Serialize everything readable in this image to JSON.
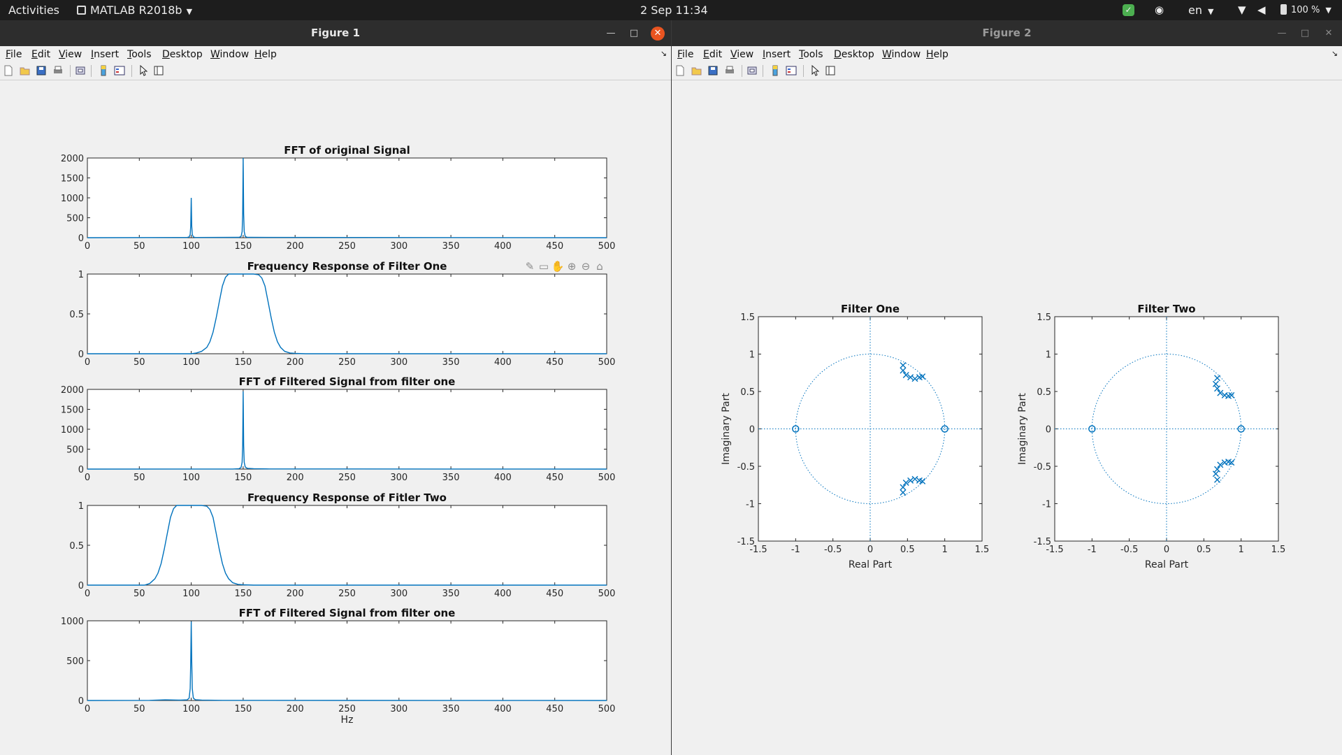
{
  "topbar": {
    "activities": "Activities",
    "app_name": "MATLAB R2018b",
    "datetime": "2 Sep  11:34",
    "language": "en",
    "battery": "100 %"
  },
  "figure1": {
    "title": "Figure 1",
    "menu": [
      "File",
      "Edit",
      "View",
      "Insert",
      "Tools",
      "Desktop",
      "Window",
      "Help"
    ]
  },
  "figure2": {
    "title": "Figure 2",
    "menu": [
      "File",
      "Edit",
      "View",
      "Insert",
      "Tools",
      "Desktop",
      "Window",
      "Help"
    ]
  },
  "colors": {
    "series": "#0072bd",
    "axes": "#262626",
    "figure_bg": "#f0f0f0",
    "close": "#e95420"
  },
  "chart_data": [
    {
      "type": "line",
      "title": "FFT of original Signal",
      "xlim": [
        0,
        500
      ],
      "ylim": [
        0,
        2000
      ],
      "xticks": [
        0,
        50,
        100,
        150,
        200,
        250,
        300,
        350,
        400,
        450,
        500
      ],
      "yticks": [
        0,
        500,
        1000,
        1500,
        2000
      ],
      "x": [
        0,
        96,
        98,
        99,
        99.5,
        100,
        100.5,
        101,
        102,
        104,
        146,
        148,
        149,
        149.5,
        150,
        150.5,
        151,
        152,
        154,
        500
      ],
      "series": [
        {
          "values": [
            0,
            5,
            20,
            80,
            300,
            1000,
            300,
            80,
            20,
            5,
            8,
            30,
            150,
            600,
            2000,
            600,
            150,
            30,
            8,
            0
          ]
        }
      ]
    },
    {
      "type": "line",
      "title": "Frequency Response of Filter One",
      "xlim": [
        0,
        500
      ],
      "ylim": [
        0,
        1
      ],
      "xticks": [
        0,
        50,
        100,
        150,
        200,
        250,
        300,
        350,
        400,
        450,
        500
      ],
      "yticks": [
        0,
        0.5,
        1
      ],
      "x": [
        0,
        100,
        105,
        110,
        115,
        118,
        121,
        124,
        127,
        130,
        133,
        136,
        140,
        150,
        160,
        165,
        168,
        171,
        174,
        177,
        180,
        183,
        186,
        190,
        195,
        200,
        210,
        500
      ],
      "series": [
        {
          "values": [
            0,
            0,
            0.01,
            0.03,
            0.08,
            0.15,
            0.27,
            0.45,
            0.65,
            0.85,
            0.96,
            1.0,
            1.0,
            1.0,
            1.0,
            0.99,
            0.95,
            0.85,
            0.65,
            0.45,
            0.27,
            0.15,
            0.08,
            0.03,
            0.01,
            0.004,
            0,
            0
          ]
        }
      ]
    },
    {
      "type": "line",
      "title": "FFT of Filtered Signal from filter one",
      "xlim": [
        0,
        500
      ],
      "ylim": [
        0,
        2000
      ],
      "xticks": [
        0,
        50,
        100,
        150,
        200,
        250,
        300,
        350,
        400,
        450,
        500
      ],
      "yticks": [
        0,
        500,
        1000,
        1500,
        2000
      ],
      "x": [
        0,
        140,
        146,
        148,
        149,
        149.5,
        150,
        150.5,
        151,
        152,
        154,
        160,
        175,
        500
      ],
      "series": [
        {
          "values": [
            0,
            2,
            10,
            40,
            170,
            600,
            1950,
            600,
            170,
            50,
            20,
            10,
            3,
            0
          ]
        }
      ]
    },
    {
      "type": "line",
      "title": "Frequency Response of Fitler Two",
      "xlim": [
        0,
        500
      ],
      "ylim": [
        0,
        1
      ],
      "xticks": [
        0,
        50,
        100,
        150,
        200,
        250,
        300,
        350,
        400,
        450,
        500
      ],
      "yticks": [
        0,
        0.5,
        1
      ],
      "x": [
        0,
        55,
        60,
        65,
        68,
        71,
        74,
        77,
        80,
        83,
        86,
        90,
        100,
        110,
        115,
        118,
        121,
        124,
        127,
        130,
        133,
        136,
        140,
        145,
        150,
        160,
        500
      ],
      "series": [
        {
          "values": [
            0,
            0,
            0.02,
            0.08,
            0.15,
            0.27,
            0.45,
            0.65,
            0.85,
            0.96,
            1.0,
            1.0,
            1.0,
            1.0,
            0.99,
            0.95,
            0.85,
            0.65,
            0.45,
            0.27,
            0.15,
            0.08,
            0.03,
            0.01,
            0.004,
            0,
            0
          ]
        }
      ]
    },
    {
      "type": "line",
      "title": "FFT of Filtered Signal from filter one",
      "xlabel": "Hz",
      "xlim": [
        0,
        500
      ],
      "ylim": [
        0,
        1000
      ],
      "xticks": [
        0,
        50,
        100,
        150,
        200,
        250,
        300,
        350,
        400,
        450,
        500
      ],
      "yticks": [
        0,
        500,
        1000
      ],
      "x": [
        0,
        60,
        75,
        90,
        96,
        98,
        99,
        99.5,
        100,
        100.5,
        101,
        102,
        104,
        110,
        130,
        500
      ],
      "series": [
        {
          "values": [
            0,
            2,
            8,
            4,
            8,
            30,
            150,
            500,
            990,
            500,
            150,
            30,
            10,
            5,
            2,
            0
          ]
        }
      ]
    },
    {
      "type": "scatter",
      "title": "Filter One",
      "xlabel": "Real Part",
      "ylabel": "Imaginary Part",
      "xlim": [
        -1.5,
        1.5
      ],
      "ylim": [
        -1.5,
        1.5
      ],
      "xticks": [
        -1.5,
        -1,
        -0.5,
        0,
        0.5,
        1,
        1.5
      ],
      "yticks": [
        -1.5,
        -1,
        -0.5,
        0,
        0.5,
        1,
        1.5
      ],
      "zeros": [
        [
          -1,
          0
        ],
        [
          1,
          0
        ]
      ],
      "poles": [
        [
          0.44,
          0.85
        ],
        [
          0.44,
          0.78
        ],
        [
          0.48,
          0.72
        ],
        [
          0.54,
          0.69
        ],
        [
          0.6,
          0.67
        ],
        [
          0.66,
          0.69
        ],
        [
          0.7,
          0.7
        ],
        [
          0.44,
          -0.85
        ],
        [
          0.44,
          -0.78
        ],
        [
          0.48,
          -0.72
        ],
        [
          0.54,
          -0.69
        ],
        [
          0.6,
          -0.67
        ],
        [
          0.66,
          -0.69
        ],
        [
          0.7,
          -0.7
        ]
      ]
    },
    {
      "type": "scatter",
      "title": "Filter Two",
      "xlabel": "Real Part",
      "ylabel": "Imaginary Part",
      "xlim": [
        -1.5,
        1.5
      ],
      "ylim": [
        -1.5,
        1.5
      ],
      "xticks": [
        -1.5,
        -1,
        -0.5,
        0,
        0.5,
        1,
        1.5
      ],
      "yticks": [
        -1.5,
        -1,
        -0.5,
        0,
        0.5,
        1,
        1.5
      ],
      "zeros": [
        [
          -1,
          0
        ],
        [
          1,
          0
        ]
      ],
      "poles": [
        [
          0.68,
          0.68
        ],
        [
          0.66,
          0.6
        ],
        [
          0.68,
          0.54
        ],
        [
          0.72,
          0.48
        ],
        [
          0.78,
          0.45
        ],
        [
          0.83,
          0.44
        ],
        [
          0.87,
          0.45
        ],
        [
          0.68,
          -0.68
        ],
        [
          0.66,
          -0.6
        ],
        [
          0.68,
          -0.54
        ],
        [
          0.72,
          -0.48
        ],
        [
          0.78,
          -0.45
        ],
        [
          0.83,
          -0.44
        ],
        [
          0.87,
          -0.45
        ]
      ]
    }
  ]
}
